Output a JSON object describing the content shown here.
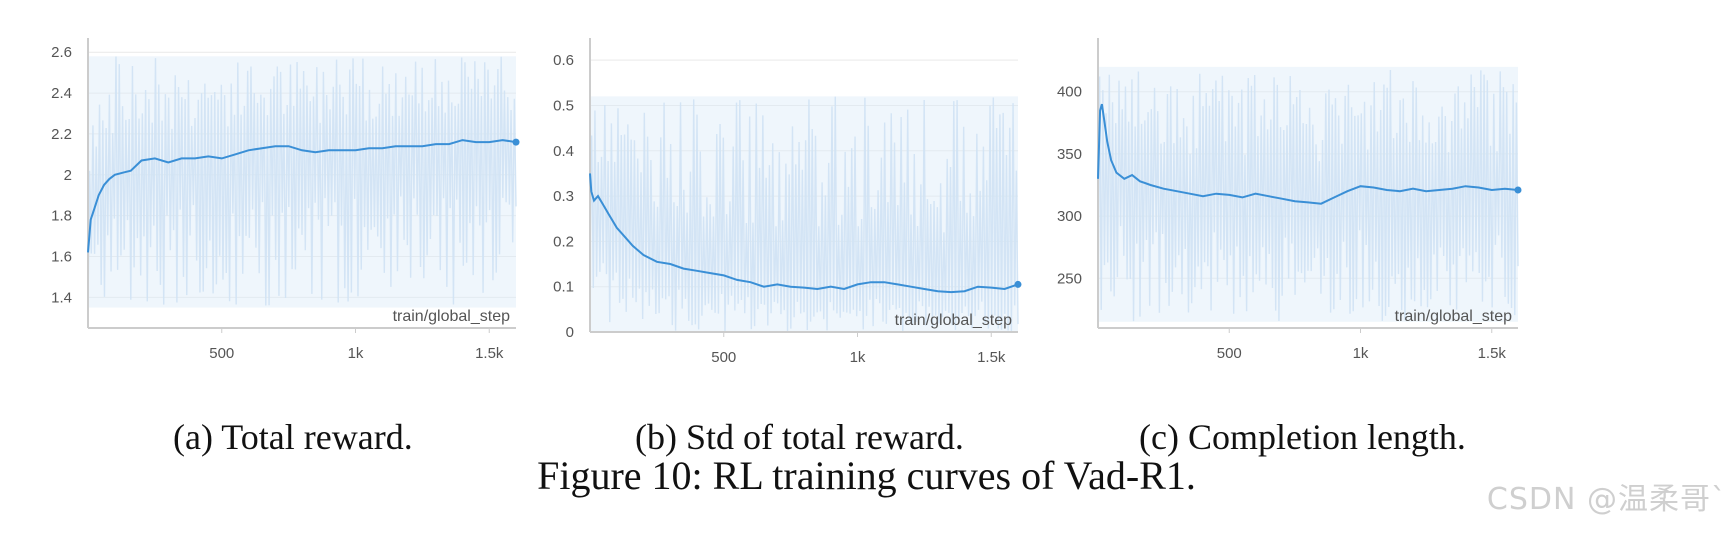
{
  "figure": {
    "caption": "Figure 10: RL training curves of Vad-R1.",
    "watermark": "CSDN @温柔哥`",
    "colors": {
      "line": "#3a8fd6",
      "band": "#dcebf8",
      "grid": "#e9e9e9",
      "axis": "#cccccc"
    }
  },
  "chart_data": [
    {
      "type": "line",
      "caption": "(a) Total reward.",
      "xlabel": "train/global_step",
      "ylabel": "",
      "xlim": [
        0,
        1600
      ],
      "ylim": [
        1.25,
        2.65
      ],
      "x_ticks": [
        500,
        1000,
        1500
      ],
      "x_tick_labels": [
        "500",
        "1k",
        "1.5k"
      ],
      "y_ticks": [
        1.4,
        1.6,
        1.8,
        2.0,
        2.2,
        2.4,
        2.6
      ],
      "y_tick_labels": [
        "1.4",
        "1.6",
        "1.8",
        "2",
        "2.2",
        "2.4",
        "2.6"
      ],
      "grid": true,
      "series": [
        {
          "x": [
            0,
            10,
            20,
            40,
            60,
            80,
            100,
            130,
            160,
            200,
            250,
            300,
            350,
            400,
            450,
            500,
            550,
            600,
            650,
            700,
            750,
            800,
            850,
            900,
            950,
            1000,
            1050,
            1100,
            1150,
            1200,
            1250,
            1300,
            1350,
            1400,
            1450,
            1500,
            1550,
            1600
          ],
          "y": [
            1.62,
            1.78,
            1.82,
            1.9,
            1.95,
            1.98,
            2.0,
            2.01,
            2.02,
            2.07,
            2.08,
            2.06,
            2.08,
            2.08,
            2.09,
            2.08,
            2.1,
            2.12,
            2.13,
            2.14,
            2.14,
            2.12,
            2.11,
            2.12,
            2.12,
            2.12,
            2.13,
            2.13,
            2.14,
            2.14,
            2.14,
            2.15,
            2.15,
            2.17,
            2.16,
            2.16,
            2.17,
            2.16
          ],
          "band_lower": 1.35,
          "band_upper": 2.58
        }
      ]
    },
    {
      "type": "line",
      "caption": "(b) Std of total reward.",
      "xlabel": "train/global_step",
      "ylabel": "",
      "xlim": [
        0,
        1600
      ],
      "ylim": [
        0,
        0.64
      ],
      "x_ticks": [
        500,
        1000,
        1500
      ],
      "x_tick_labels": [
        "500",
        "1k",
        "1.5k"
      ],
      "y_ticks": [
        0,
        0.1,
        0.2,
        0.3,
        0.4,
        0.5,
        0.6
      ],
      "y_tick_labels": [
        "0",
        "0.1",
        "0.2",
        "0.3",
        "0.4",
        "0.5",
        "0.6"
      ],
      "grid": true,
      "series": [
        {
          "x": [
            0,
            5,
            15,
            30,
            50,
            70,
            100,
            130,
            160,
            200,
            250,
            300,
            350,
            400,
            450,
            500,
            550,
            600,
            650,
            700,
            750,
            800,
            850,
            900,
            950,
            1000,
            1050,
            1100,
            1150,
            1200,
            1250,
            1300,
            1350,
            1400,
            1450,
            1500,
            1550,
            1600
          ],
          "y": [
            0.35,
            0.31,
            0.29,
            0.3,
            0.28,
            0.26,
            0.23,
            0.21,
            0.19,
            0.17,
            0.155,
            0.15,
            0.14,
            0.135,
            0.13,
            0.125,
            0.115,
            0.11,
            0.1,
            0.105,
            0.1,
            0.098,
            0.095,
            0.1,
            0.095,
            0.105,
            0.11,
            0.11,
            0.105,
            0.1,
            0.095,
            0.09,
            0.088,
            0.09,
            0.1,
            0.098,
            0.095,
            0.105
          ],
          "band_lower": 0.0,
          "band_upper": 0.52
        }
      ]
    },
    {
      "type": "line",
      "caption": "(c) Completion length.",
      "xlabel": "train/global_step",
      "ylabel": "",
      "xlim": [
        0,
        1600
      ],
      "ylim": [
        210,
        440
      ],
      "x_ticks": [
        500,
        1000,
        1500
      ],
      "x_tick_labels": [
        "500",
        "1k",
        "1.5k"
      ],
      "y_ticks": [
        250,
        300,
        350,
        400
      ],
      "y_tick_labels": [
        "250",
        "300",
        "350",
        "400"
      ],
      "grid": true,
      "series": [
        {
          "x": [
            0,
            8,
            15,
            25,
            35,
            50,
            70,
            100,
            130,
            160,
            200,
            250,
            300,
            350,
            400,
            450,
            500,
            550,
            600,
            650,
            700,
            750,
            800,
            850,
            900,
            950,
            1000,
            1050,
            1100,
            1150,
            1200,
            1250,
            1300,
            1350,
            1400,
            1450,
            1500,
            1550,
            1600
          ],
          "y": [
            330,
            385,
            390,
            375,
            360,
            345,
            335,
            330,
            333,
            328,
            325,
            322,
            320,
            318,
            316,
            318,
            317,
            315,
            318,
            316,
            314,
            312,
            311,
            310,
            315,
            320,
            324,
            323,
            321,
            320,
            322,
            320,
            321,
            322,
            324,
            323,
            321,
            322,
            321
          ],
          "band_lower": 215,
          "band_upper": 420
        }
      ]
    }
  ]
}
